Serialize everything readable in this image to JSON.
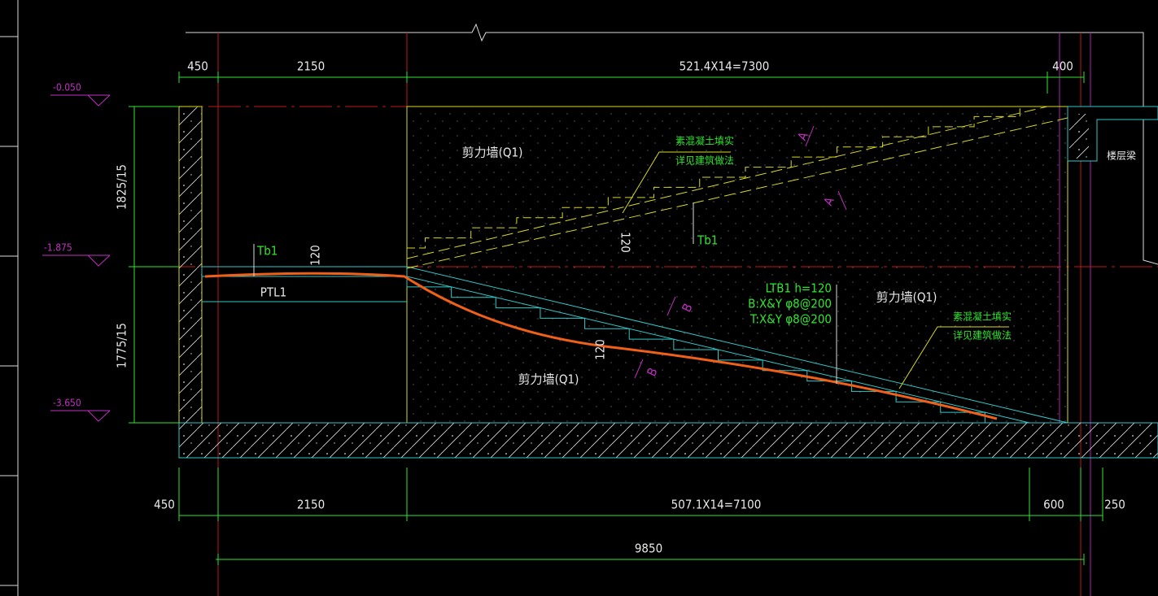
{
  "top_dimensions": [
    "450",
    "2150",
    "521.4X14=7300",
    "400"
  ],
  "bottom_dimensions": [
    "450",
    "2150",
    "507.1X14=7100",
    "600",
    "250"
  ],
  "overall_dimension": "9850",
  "levels": [
    "-0.050",
    "-1.875",
    "-3.650"
  ],
  "height_dimensions": [
    "1825/15",
    "1775/15"
  ],
  "wall_labels": [
    "剪力墙(Q1)",
    "剪力墙(Q1)",
    "剪力墙(Q1)"
  ],
  "fill_notes": [
    [
      "素混凝土填实",
      "详见建筑做法"
    ],
    [
      "素混凝土填实",
      "详见建筑做法"
    ]
  ],
  "beam_labels": [
    "Tb1",
    "Tb1",
    "PTL1"
  ],
  "thickness_labels": [
    "120",
    "120",
    "120"
  ],
  "slab_note": [
    "LTB1 h=120",
    "B:X&Y φ8@200",
    "T:X&Y φ8@200"
  ],
  "section_marks": [
    "A",
    "A",
    "B",
    "B"
  ],
  "floor_beam": "楼层梁"
}
